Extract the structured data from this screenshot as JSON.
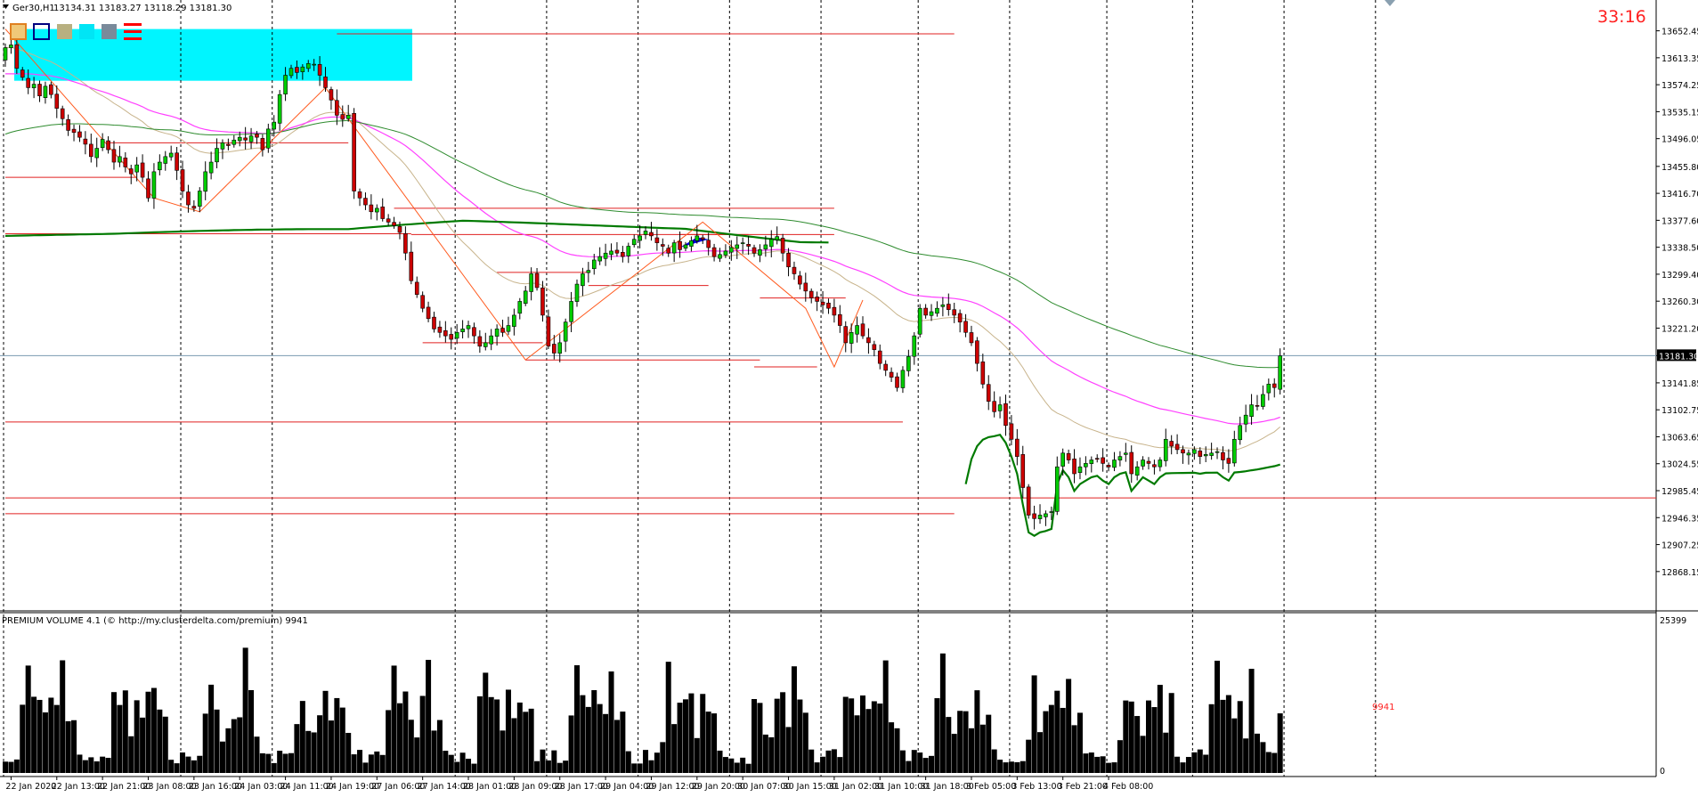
{
  "header": {
    "symbol_label": "Ger30,H1",
    "ohlc_label": "13134.31 13183.27 13118.29 13181.30",
    "timer": "33:16"
  },
  "volume_panel": {
    "title": "PREMIUM VOLUME 4.1 (© http://my.clusterdelta.com/premium) 9941",
    "max_label": "25399",
    "min_label": "0",
    "last_value_label": "9941"
  },
  "toolbar_icons": [
    "orange-square-icon",
    "blue-square-icon",
    "olive-square-icon",
    "cyan-square-icon",
    "gray-square-icon",
    "red-lines-icon"
  ],
  "colors": {
    "bull": "#00cc00",
    "bear": "#cc0000",
    "ma_pink": "#ff40ff",
    "ma_tan": "#c8b48c",
    "ma_green": "#2e8b2e",
    "vwap_green": "#007a00",
    "signal_blue": "#0000dd",
    "hline_red": "#e02020",
    "zone_cyan": "#00f5ff",
    "current_price_line": "#7a9ab0",
    "timer_red": "#ff2020"
  },
  "chart_data": {
    "type": "candlestick",
    "symbol": "Ger30",
    "timeframe": "H1",
    "price_axis_labels": [
      "13652.45",
      "13613.35",
      "13574.25",
      "13535.15",
      "13496.05",
      "13455.80",
      "13416.70",
      "13377.60",
      "13338.50",
      "13299.40",
      "13260.30",
      "13221.20",
      "13181.30",
      "13141.85",
      "13102.75",
      "13063.65",
      "13024.55",
      "12985.45",
      "12946.35",
      "12907.25",
      "12868.15"
    ],
    "ylim": [
      12855,
      13670
    ],
    "current_price": 13181.3,
    "time_labels": [
      "22 Jan 2020",
      "22 Jan 13:00",
      "22 Jan 21:00",
      "23 Jan 08:00",
      "23 Jan 16:00",
      "24 Jan 03:00",
      "24 Jan 11:00",
      "24 Jan 19:00",
      "27 Jan 06:00",
      "27 Jan 14:00",
      "28 Jan 01:00",
      "28 Jan 09:00",
      "28 Jan 17:00",
      "29 Jan 04:00",
      "29 Jan 12:00",
      "29 Jan 20:00",
      "30 Jan 07:00",
      "30 Jan 15:00",
      "31 Jan 02:00",
      "31 Jan 10:00",
      "31 Jan 18:00",
      "3 Feb 05:00",
      "3 Feb 13:00",
      "3 Feb 21:00",
      "4 Feb 08:00"
    ],
    "day_separator_bars": [
      0,
      31,
      47,
      79,
      95,
      111,
      127,
      143,
      160,
      176,
      193,
      208,
      224,
      240
    ],
    "closes": [
      13628,
      13632,
      13598,
      13585,
      13570,
      13575,
      13558,
      13572,
      13560,
      13540,
      13525,
      13508,
      13505,
      13498,
      13488,
      13470,
      13482,
      13495,
      13480,
      13462,
      13470,
      13455,
      13445,
      13458,
      13440,
      13410,
      13448,
      13462,
      13470,
      13475,
      13450,
      13420,
      13400,
      13395,
      13420,
      13448,
      13462,
      13482,
      13490,
      13486,
      13494,
      13498,
      13494,
      13500,
      13498,
      13480,
      13510,
      13520,
      13560,
      13588,
      13598,
      13592,
      13600,
      13605,
      13604,
      13588,
      13570,
      13552,
      13530,
      13524,
      13530,
      13420,
      13410,
      13400,
      13390,
      13395,
      13380,
      13375,
      13370,
      13360,
      13330,
      13290,
      13270,
      13250,
      13235,
      13220,
      13215,
      13210,
      13205,
      13215,
      13220,
      13225,
      13210,
      13195,
      13200,
      13210,
      13220,
      13215,
      13225,
      13240,
      13260,
      13275,
      13300,
      13280,
      13240,
      13195,
      13185,
      13200,
      13230,
      13260,
      13285,
      13300,
      13305,
      13320,
      13325,
      13330,
      13333,
      13330,
      13325,
      13340,
      13350,
      13355,
      13362,
      13355,
      13345,
      13340,
      13330,
      13345,
      13335,
      13342,
      13348,
      13355,
      13350,
      13338,
      13325,
      13328,
      13333,
      13338,
      13342,
      13345,
      13340,
      13330,
      13335,
      13342,
      13350,
      13354,
      13330,
      13310,
      13300,
      13285,
      13275,
      13265,
      13260,
      13255,
      13250,
      13240,
      13225,
      13200,
      13215,
      13225,
      13210,
      13200,
      13190,
      13170,
      13160,
      13150,
      13135,
      13160,
      13180,
      13210,
      13250,
      13240,
      13245,
      13250,
      13255,
      13248,
      13240,
      13230,
      13215,
      13200,
      13170,
      13140,
      13115,
      13100,
      13110,
      13080,
      13060,
      13035,
      12990,
      12950,
      12945,
      12950,
      12952,
      12955,
      13020,
      13040,
      13030,
      13010,
      13020,
      13025,
      13030,
      13032,
      13025,
      13020,
      13030,
      13035,
      13040,
      13010,
      13020,
      13030,
      13025,
      13020,
      13030,
      13060,
      13050,
      13045,
      13040,
      13040,
      13045,
      13035,
      13038,
      13040,
      13042,
      13030,
      13025,
      13060,
      13080,
      13095,
      13110,
      13108,
      13125,
      13140,
      13135,
      13181
    ]
  }
}
